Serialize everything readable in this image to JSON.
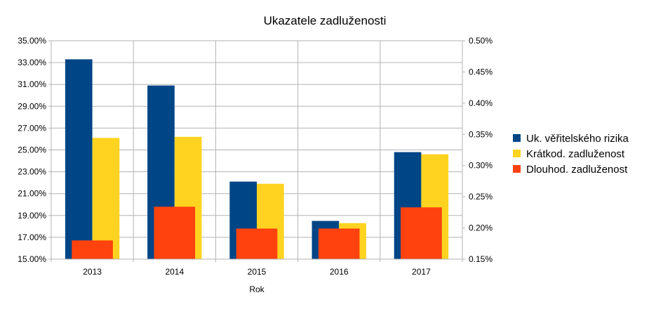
{
  "chart_data": {
    "type": "bar",
    "title": "Ukazatele zadluženosti",
    "xlabel": "Rok",
    "ylabel": "",
    "ylabel_right": "",
    "categories": [
      "2013",
      "2014",
      "2015",
      "2016",
      "2017"
    ],
    "ylim": [
      15,
      35
    ],
    "ylim_right": [
      0.15,
      0.5
    ],
    "yticks": [
      "15.00%",
      "17.00%",
      "19.00%",
      "21.00%",
      "23.00%",
      "25.00%",
      "27.00%",
      "29.00%",
      "31.00%",
      "33.00%",
      "35.00%"
    ],
    "yticks_right": [
      "0.15%",
      "0.20%",
      "0.25%",
      "0.30%",
      "0.35%",
      "0.40%",
      "0.45%",
      "0.50%"
    ],
    "grid": true,
    "legend_position": "right",
    "series": [
      {
        "name": "Uk. věřitelského rizika",
        "axis": "left",
        "color": "#004586",
        "values": [
          33.3,
          30.9,
          22.1,
          18.5,
          24.8
        ]
      },
      {
        "name": "Krátkod. zadluženost",
        "axis": "left",
        "color": "#ffd320",
        "values": [
          26.1,
          26.2,
          21.9,
          18.3,
          24.6
        ]
      },
      {
        "name": "Dlouhod. zadluženost",
        "axis": "right",
        "color": "#ff420e",
        "values": [
          0.18,
          0.234,
          0.199,
          0.199,
          0.233
        ]
      }
    ]
  }
}
